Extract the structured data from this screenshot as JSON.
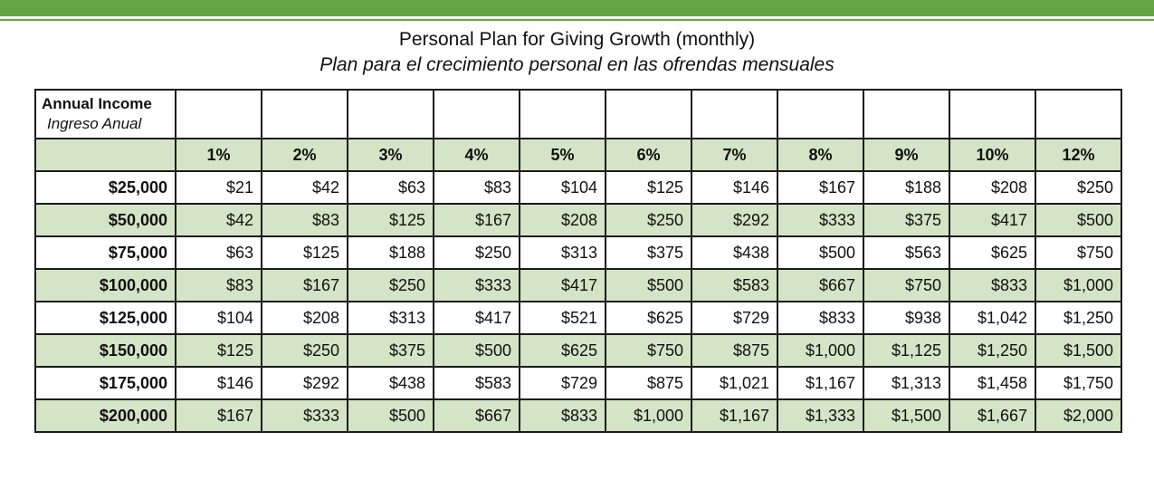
{
  "header": {
    "title": "Personal Plan for Giving Growth (monthly)",
    "subtitle": "Plan para el crecimiento personal en las ofrendas mensuales"
  },
  "table": {
    "label_en": "Annual Income",
    "label_es": "Ingreso Anual",
    "percents": [
      "1%",
      "2%",
      "3%",
      "4%",
      "5%",
      "6%",
      "7%",
      "8%",
      "9%",
      "10%",
      "12%"
    ],
    "rows": [
      {
        "income": "$25,000",
        "values": [
          "$21",
          "$42",
          "$63",
          "$83",
          "$104",
          "$125",
          "$146",
          "$167",
          "$188",
          "$208",
          "$250"
        ]
      },
      {
        "income": "$50,000",
        "values": [
          "$42",
          "$83",
          "$125",
          "$167",
          "$208",
          "$250",
          "$292",
          "$333",
          "$375",
          "$417",
          "$500"
        ]
      },
      {
        "income": "$75,000",
        "values": [
          "$63",
          "$125",
          "$188",
          "$250",
          "$313",
          "$375",
          "$438",
          "$500",
          "$563",
          "$625",
          "$750"
        ]
      },
      {
        "income": "$100,000",
        "values": [
          "$83",
          "$167",
          "$250",
          "$333",
          "$417",
          "$500",
          "$583",
          "$667",
          "$750",
          "$833",
          "$1,000"
        ]
      },
      {
        "income": "$125,000",
        "values": [
          "$104",
          "$208",
          "$313",
          "$417",
          "$521",
          "$625",
          "$729",
          "$833",
          "$938",
          "$1,042",
          "$1,250"
        ]
      },
      {
        "income": "$150,000",
        "values": [
          "$125",
          "$250",
          "$375",
          "$500",
          "$625",
          "$750",
          "$875",
          "$1,000",
          "$1,125",
          "$1,250",
          "$1,500"
        ]
      },
      {
        "income": "$175,000",
        "values": [
          "$146",
          "$292",
          "$438",
          "$583",
          "$729",
          "$875",
          "$1,021",
          "$1,167",
          "$1,313",
          "$1,458",
          "$1,750"
        ]
      },
      {
        "income": "$200,000",
        "values": [
          "$167",
          "$333",
          "$500",
          "$667",
          "$833",
          "$1,000",
          "$1,167",
          "$1,333",
          "$1,500",
          "$1,667",
          "$2,000"
        ]
      }
    ]
  },
  "colors": {
    "brand_green": "#63a543",
    "row_green": "#d4e4c6"
  }
}
